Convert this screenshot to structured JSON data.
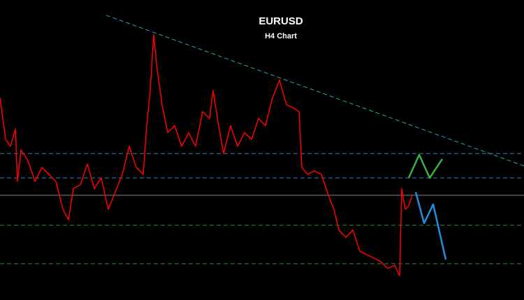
{
  "chart_data": {
    "type": "line",
    "title": "EURUSD",
    "subtitle": "H4 Chart",
    "xlim": [
      0,
      750
    ],
    "ylim": [
      0,
      100
    ],
    "price": {
      "color": "#ff0000",
      "x": [
        0,
        8,
        15,
        22,
        25,
        30,
        40,
        50,
        60,
        70,
        80,
        90,
        98,
        105,
        115,
        125,
        135,
        145,
        155,
        165,
        175,
        185,
        195,
        205,
        210,
        215,
        220,
        225,
        232,
        240,
        250,
        260,
        270,
        280,
        290,
        300,
        305,
        312,
        320,
        330,
        340,
        350,
        360,
        370,
        380,
        390,
        400,
        410,
        420,
        428,
        432,
        440,
        450,
        460,
        470,
        478,
        485,
        495,
        505,
        515,
        525,
        535,
        545,
        555,
        565,
        572,
        575,
        580,
        585,
        590
      ],
      "values": [
        67.4,
        53.5,
        51.2,
        57.0,
        39.5,
        50.0,
        46.5,
        39.5,
        44.2,
        41.9,
        39.5,
        30.2,
        26.7,
        37.2,
        38.4,
        45.3,
        37.2,
        40.7,
        30.2,
        36.0,
        41.9,
        51.2,
        44.2,
        41.9,
        58.1,
        69.8,
        88.4,
        76.7,
        65.1,
        55.8,
        58.1,
        51.2,
        55.8,
        51.2,
        62.8,
        60.5,
        69.8,
        59.3,
        48.8,
        58.1,
        51.2,
        55.8,
        53.5,
        60.5,
        58.1,
        67.4,
        73.3,
        65.1,
        64.0,
        62.8,
        44.2,
        41.9,
        43.0,
        41.9,
        34.9,
        30.2,
        23.3,
        20.9,
        23.3,
        16.3,
        15.1,
        14.0,
        12.8,
        10.5,
        11.6,
        8.1,
        37.2,
        30.2,
        31.4,
        34.9
      ]
    },
    "levels": [
      {
        "value": 48.8,
        "color": "#3a7fc0",
        "dashed": true
      },
      {
        "value": 40.7,
        "color": "#3a7fc0",
        "dashed": true
      },
      {
        "value": 34.9,
        "color": "#888888",
        "dashed": false
      },
      {
        "value": 24.9,
        "color": "#2e8b2e",
        "dashed": true
      },
      {
        "value": 12.1,
        "color": "#2e8b2e",
        "dashed": true
      }
    ],
    "trendline": {
      "color": "#2aa6b8",
      "x": [
        152,
        750
      ],
      "values": [
        94.9,
        44.7
      ]
    },
    "projections": [
      {
        "color": "#3cb043",
        "x": [
          585,
          600,
          615,
          633
        ],
        "values": [
          40.7,
          48.4,
          40.7,
          47.0
        ]
      },
      {
        "color": "#1e90dd",
        "x": [
          595,
          607,
          620,
          638
        ],
        "values": [
          36.0,
          25.6,
          31.9,
          13.5
        ]
      }
    ]
  }
}
